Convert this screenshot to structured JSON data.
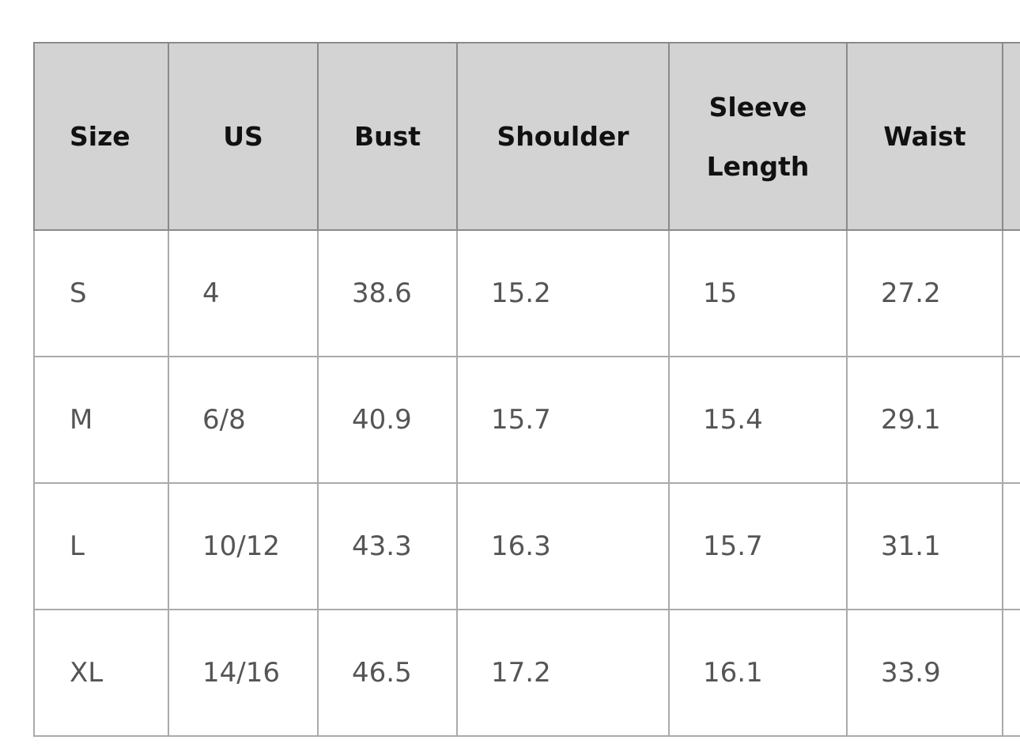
{
  "headers": [
    "Size",
    "US",
    "Bust",
    "Shoulder",
    "Sleeve Length",
    "Waist",
    ""
  ],
  "rows": [
    [
      "S",
      "4",
      "38.6",
      "15.2",
      "15",
      "27.2",
      ""
    ],
    [
      "M",
      "6/8",
      "40.9",
      "15.7",
      "15.4",
      "29.1",
      ""
    ],
    [
      "L",
      "10/12",
      "43.3",
      "16.3",
      "15.7",
      "31.1",
      ""
    ],
    [
      "XL",
      "14/16",
      "46.5",
      "17.2",
      "16.1",
      "33.9",
      ""
    ]
  ],
  "colors": {
    "header_bg": "#d3d3d3",
    "border": "#aaaaaa"
  }
}
